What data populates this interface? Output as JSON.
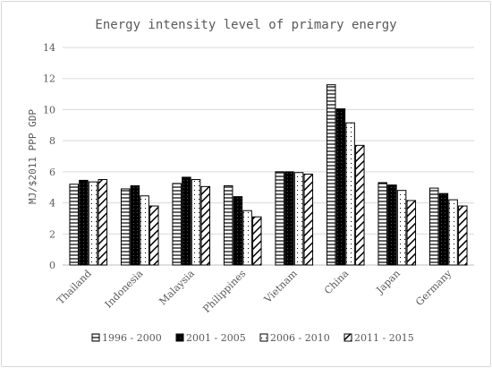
{
  "chart_data": {
    "type": "bar",
    "title": "Energy intensity level of primary energy",
    "xlabel": "",
    "ylabel": "MJ/$2011 PPP GDP",
    "ylim": [
      0,
      14
    ],
    "yticks": [
      0,
      2,
      4,
      6,
      8,
      10,
      12,
      14
    ],
    "grid": true,
    "legend_position": "bottom",
    "categories": [
      "Thailand",
      "Indonesia",
      "Malaysia",
      "Philippines",
      "Vietnam",
      "China",
      "Japan",
      "Germany"
    ],
    "series": [
      {
        "name": "1996 - 2000",
        "pattern": "horizontal-lines",
        "values": [
          5.2,
          4.9,
          5.25,
          5.1,
          6.0,
          11.6,
          5.3,
          4.95
        ]
      },
      {
        "name": "2001 - 2005",
        "pattern": "solid-black",
        "values": [
          5.45,
          5.1,
          5.65,
          4.4,
          6.0,
          10.05,
          5.15,
          4.6
        ]
      },
      {
        "name": "2006 - 2010",
        "pattern": "dotted",
        "values": [
          5.35,
          4.45,
          5.5,
          3.5,
          5.95,
          9.15,
          4.8,
          4.2
        ]
      },
      {
        "name": "2011 - 2015",
        "pattern": "diagonal-lines",
        "values": [
          5.5,
          3.8,
          5.05,
          3.1,
          5.85,
          7.7,
          4.15,
          3.8
        ]
      }
    ]
  }
}
